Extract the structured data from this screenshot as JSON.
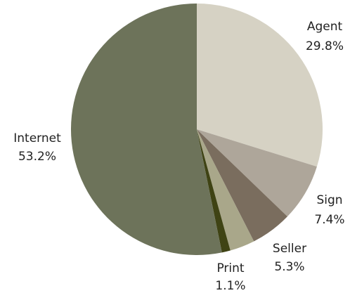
{
  "chart_data": {
    "type": "pie",
    "title": "",
    "start": "12 o'clock",
    "direction": "clockwise",
    "legend": "none",
    "slices": [
      {
        "label": "Agent",
        "value": 29.8,
        "value_label": "29.8%",
        "color": "#d6d2c4"
      },
      {
        "label": "Sign",
        "value": 7.4,
        "value_label": "7.4%",
        "color": "#aea69a"
      },
      {
        "label": "Seller",
        "value": 5.3,
        "value_label": "5.3%",
        "color": "#7a6d5e"
      },
      {
        "label": "",
        "value": 3.2,
        "value_label": "",
        "color": "#a9a78a"
      },
      {
        "label": "Print",
        "value": 1.1,
        "value_label": "1.1%",
        "color": "#3f4314"
      },
      {
        "label": "Internet",
        "value": 53.2,
        "value_label": "53.2%",
        "color": "#6d735a"
      }
    ]
  }
}
